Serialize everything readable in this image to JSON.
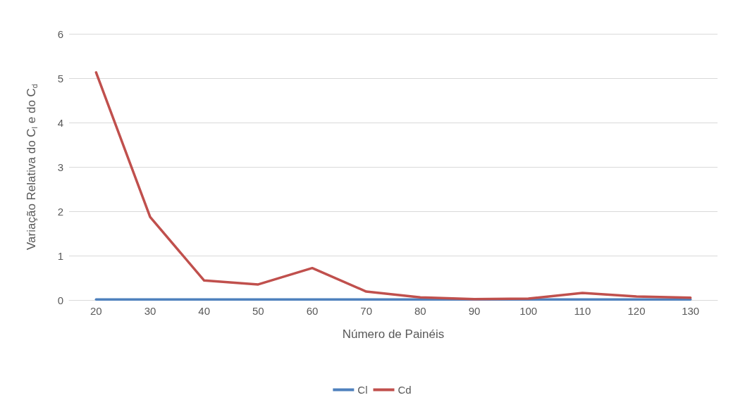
{
  "chart_data": {
    "type": "line",
    "xlabel": "Número de Painéis",
    "ylabel": "Variação Relativa do C$_{l}$ e do C$_{d}$",
    "categories": [
      "20",
      "30",
      "40",
      "50",
      "60",
      "70",
      "80",
      "90",
      "100",
      "110",
      "120",
      "130"
    ],
    "series": [
      {
        "name": "Cl",
        "color": "#4f81bd",
        "values": [
          0.01,
          0.01,
          0.01,
          0.01,
          0.01,
          0.01,
          0.01,
          0.01,
          0.01,
          0.01,
          0.01,
          0.01
        ]
      },
      {
        "name": "Cd",
        "color": "#c0504d",
        "values": [
          5.13,
          1.87,
          0.44,
          0.35,
          0.72,
          0.19,
          0.06,
          0.02,
          0.03,
          0.16,
          0.08,
          0.05
        ]
      }
    ],
    "ylim": [
      0,
      6
    ],
    "yticks": [
      0,
      1,
      2,
      3,
      4,
      5,
      6
    ],
    "grid": "y",
    "legend": "bottom",
    "marker": "none",
    "line_style": "solid"
  }
}
